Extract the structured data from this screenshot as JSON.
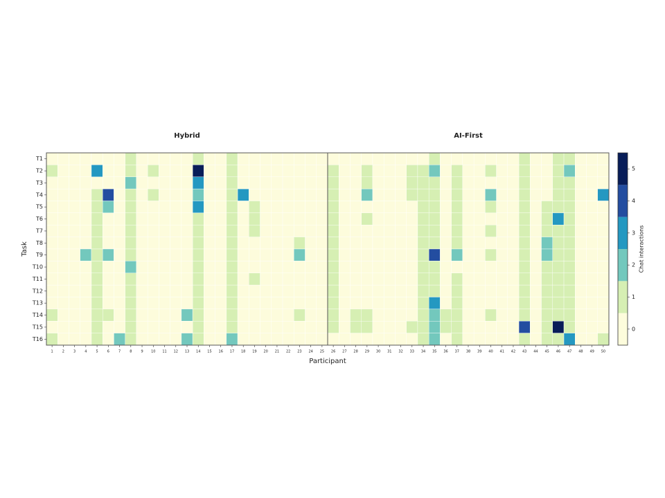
{
  "chart_data": {
    "type": "heatmap",
    "xlabel": "Participant",
    "ylabel": "Task",
    "y": [
      "T1",
      "T2",
      "T3",
      "T4",
      "T5",
      "T6",
      "T7",
      "T8",
      "T9",
      "T10",
      "T11",
      "T12",
      "T13",
      "T14",
      "T15",
      "T16"
    ],
    "colorbar": {
      "label": "Chat interactions",
      "lim": [
        -0.5,
        5.5
      ],
      "ticks": [
        0,
        1,
        2,
        3,
        4,
        5
      ],
      "colors": [
        "#fdfcdc",
        "#d6efb3",
        "#73c8bd",
        "#2498c1",
        "#234da0",
        "#081d58"
      ]
    },
    "panels": [
      {
        "title": "Hybrid",
        "x": [
          1,
          2,
          3,
          4,
          5,
          6,
          7,
          8,
          9,
          10,
          11,
          12,
          13,
          14,
          15,
          16,
          17,
          18,
          19,
          20,
          21,
          22,
          23,
          24,
          25
        ],
        "values": [
          [
            0,
            0,
            0,
            0,
            0,
            0,
            0,
            1,
            0,
            0,
            0,
            0,
            0,
            1,
            0,
            0,
            1,
            0,
            0,
            0,
            0,
            0,
            0,
            0,
            0
          ],
          [
            1,
            0,
            0,
            0,
            3,
            0,
            0,
            1,
            0,
            1,
            0,
            0,
            0,
            5,
            0,
            0,
            1,
            0,
            0,
            0,
            0,
            0,
            0,
            0,
            0
          ],
          [
            0,
            0,
            0,
            0,
            0,
            0,
            0,
            2,
            0,
            0,
            0,
            0,
            0,
            3,
            0,
            0,
            1,
            0,
            0,
            0,
            0,
            0,
            0,
            0,
            0
          ],
          [
            0,
            0,
            0,
            0,
            1,
            4,
            0,
            1,
            0,
            1,
            0,
            0,
            0,
            2,
            0,
            0,
            1,
            3,
            0,
            0,
            0,
            0,
            0,
            0,
            0
          ],
          [
            0,
            0,
            0,
            0,
            1,
            2,
            0,
            1,
            0,
            0,
            0,
            0,
            0,
            3,
            0,
            0,
            1,
            0,
            1,
            0,
            0,
            0,
            0,
            0,
            0
          ],
          [
            0,
            0,
            0,
            0,
            1,
            0,
            0,
            1,
            0,
            0,
            0,
            0,
            0,
            1,
            0,
            0,
            1,
            0,
            1,
            0,
            0,
            0,
            0,
            0,
            0
          ],
          [
            0,
            0,
            0,
            0,
            1,
            0,
            0,
            1,
            0,
            0,
            0,
            0,
            0,
            1,
            0,
            0,
            1,
            0,
            1,
            0,
            0,
            0,
            0,
            0,
            0
          ],
          [
            0,
            0,
            0,
            0,
            1,
            0,
            0,
            1,
            0,
            0,
            0,
            0,
            0,
            1,
            0,
            0,
            1,
            0,
            0,
            0,
            0,
            0,
            1,
            0,
            0
          ],
          [
            0,
            0,
            0,
            2,
            1,
            2,
            0,
            1,
            0,
            0,
            0,
            0,
            0,
            1,
            0,
            0,
            1,
            0,
            0,
            0,
            0,
            0,
            2,
            0,
            0
          ],
          [
            0,
            0,
            0,
            0,
            1,
            0,
            0,
            2,
            0,
            0,
            0,
            0,
            0,
            1,
            0,
            0,
            1,
            0,
            0,
            0,
            0,
            0,
            0,
            0,
            0
          ],
          [
            0,
            0,
            0,
            0,
            1,
            0,
            0,
            1,
            0,
            0,
            0,
            0,
            0,
            1,
            0,
            0,
            1,
            0,
            1,
            0,
            0,
            0,
            0,
            0,
            0
          ],
          [
            0,
            0,
            0,
            0,
            1,
            0,
            0,
            1,
            0,
            0,
            0,
            0,
            0,
            1,
            0,
            0,
            1,
            0,
            0,
            0,
            0,
            0,
            0,
            0,
            0
          ],
          [
            0,
            0,
            0,
            0,
            1,
            0,
            0,
            1,
            0,
            0,
            0,
            0,
            0,
            1,
            0,
            0,
            1,
            0,
            0,
            0,
            0,
            0,
            0,
            0,
            0
          ],
          [
            1,
            0,
            0,
            0,
            1,
            1,
            0,
            1,
            0,
            0,
            0,
            0,
            2,
            1,
            0,
            0,
            1,
            0,
            0,
            0,
            0,
            0,
            1,
            0,
            0
          ],
          [
            0,
            0,
            0,
            0,
            1,
            0,
            0,
            1,
            0,
            0,
            0,
            0,
            0,
            1,
            0,
            0,
            1,
            0,
            0,
            0,
            0,
            0,
            0,
            0,
            0
          ],
          [
            1,
            0,
            0,
            0,
            1,
            0,
            2,
            1,
            0,
            0,
            0,
            0,
            2,
            1,
            0,
            0,
            2,
            0,
            0,
            0,
            0,
            0,
            0,
            0,
            0
          ]
        ]
      },
      {
        "title": "AI-First",
        "x": [
          26,
          27,
          28,
          29,
          30,
          31,
          32,
          33,
          34,
          35,
          36,
          37,
          38,
          39,
          40,
          41,
          42,
          43,
          44,
          45,
          46,
          47,
          48,
          49,
          50
        ],
        "values": [
          [
            0,
            0,
            0,
            0,
            0,
            0,
            0,
            0,
            0,
            1,
            0,
            0,
            0,
            0,
            0,
            0,
            0,
            1,
            0,
            0,
            1,
            1,
            0,
            0,
            0
          ],
          [
            1,
            0,
            0,
            1,
            0,
            0,
            0,
            1,
            1,
            2,
            0,
            1,
            0,
            0,
            1,
            0,
            0,
            1,
            0,
            0,
            1,
            2,
            0,
            0,
            0
          ],
          [
            1,
            0,
            0,
            1,
            0,
            0,
            0,
            1,
            1,
            1,
            0,
            1,
            0,
            0,
            0,
            0,
            0,
            1,
            0,
            0,
            1,
            1,
            0,
            0,
            0
          ],
          [
            1,
            0,
            0,
            2,
            0,
            0,
            0,
            1,
            1,
            1,
            0,
            1,
            0,
            0,
            2,
            0,
            0,
            1,
            0,
            0,
            1,
            1,
            0,
            0,
            3
          ],
          [
            1,
            0,
            0,
            0,
            0,
            0,
            0,
            0,
            1,
            1,
            0,
            1,
            0,
            0,
            1,
            0,
            0,
            1,
            0,
            1,
            1,
            1,
            0,
            0,
            0
          ],
          [
            1,
            0,
            0,
            1,
            0,
            0,
            0,
            0,
            1,
            1,
            0,
            1,
            0,
            0,
            0,
            0,
            0,
            1,
            0,
            1,
            3,
            1,
            0,
            0,
            0
          ],
          [
            1,
            0,
            0,
            0,
            0,
            0,
            0,
            0,
            1,
            1,
            0,
            1,
            0,
            0,
            1,
            0,
            0,
            1,
            0,
            1,
            1,
            1,
            0,
            0,
            0
          ],
          [
            1,
            0,
            0,
            0,
            0,
            0,
            0,
            0,
            1,
            1,
            0,
            1,
            0,
            0,
            0,
            0,
            0,
            1,
            0,
            2,
            1,
            1,
            0,
            0,
            0
          ],
          [
            1,
            0,
            0,
            0,
            0,
            0,
            0,
            0,
            1,
            4,
            0,
            2,
            0,
            0,
            1,
            0,
            0,
            1,
            0,
            2,
            1,
            1,
            0,
            0,
            0
          ],
          [
            1,
            0,
            0,
            0,
            0,
            0,
            0,
            0,
            1,
            1,
            0,
            0,
            0,
            0,
            0,
            0,
            0,
            1,
            0,
            1,
            1,
            1,
            0,
            0,
            0
          ],
          [
            1,
            0,
            0,
            0,
            0,
            0,
            0,
            0,
            1,
            1,
            0,
            1,
            0,
            0,
            0,
            0,
            0,
            1,
            0,
            1,
            1,
            1,
            0,
            0,
            0
          ],
          [
            1,
            0,
            0,
            0,
            0,
            0,
            0,
            0,
            1,
            1,
            0,
            1,
            0,
            0,
            0,
            0,
            0,
            1,
            0,
            1,
            1,
            1,
            0,
            0,
            0
          ],
          [
            1,
            0,
            0,
            0,
            0,
            0,
            0,
            0,
            1,
            3,
            0,
            1,
            0,
            0,
            0,
            0,
            0,
            1,
            0,
            1,
            1,
            1,
            0,
            0,
            0
          ],
          [
            1,
            0,
            1,
            1,
            0,
            0,
            0,
            0,
            1,
            2,
            1,
            1,
            0,
            0,
            1,
            0,
            0,
            1,
            0,
            1,
            1,
            1,
            0,
            0,
            0
          ],
          [
            1,
            0,
            1,
            1,
            0,
            0,
            0,
            1,
            1,
            2,
            1,
            1,
            0,
            0,
            0,
            0,
            0,
            4,
            0,
            1,
            5,
            1,
            0,
            0,
            0
          ],
          [
            0,
            0,
            0,
            0,
            0,
            0,
            0,
            0,
            1,
            2,
            0,
            1,
            0,
            0,
            0,
            0,
            0,
            1,
            0,
            1,
            1,
            3,
            0,
            0,
            1
          ]
        ]
      }
    ]
  }
}
